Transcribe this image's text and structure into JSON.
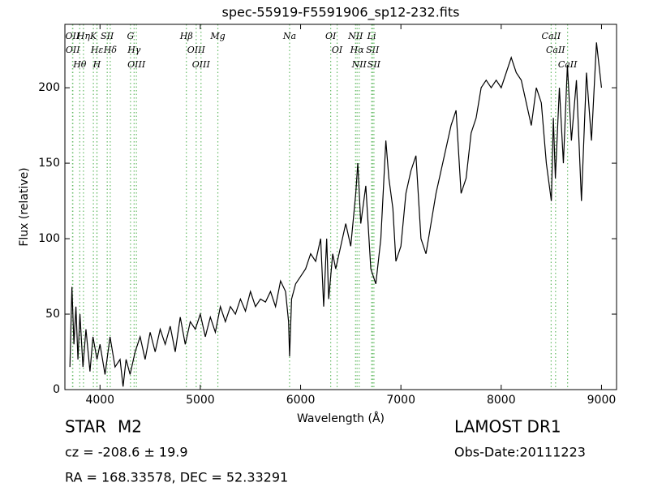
{
  "chart_data": {
    "type": "line",
    "title": "spec-55919-F5591906_sp12-232.fits",
    "xlabel": "Wavelength (Å)",
    "ylabel": "Flux (relative)",
    "xlim": [
      3650,
      9150
    ],
    "xticks": [
      4000,
      5000,
      6000,
      7000,
      8000,
      9000
    ],
    "ylim": [
      0,
      242
    ],
    "yticks": [
      0,
      50,
      100,
      150,
      200
    ],
    "color": "#000000",
    "line_color": "#66bb66",
    "x": [
      3700,
      3720,
      3740,
      3760,
      3780,
      3800,
      3830,
      3860,
      3900,
      3930,
      3970,
      4000,
      4050,
      4100,
      4150,
      4200,
      4230,
      4260,
      4300,
      4350,
      4400,
      4450,
      4500,
      4550,
      4600,
      4650,
      4700,
      4750,
      4800,
      4850,
      4900,
      4950,
      5000,
      5050,
      5100,
      5150,
      5200,
      5250,
      5300,
      5350,
      5400,
      5450,
      5500,
      5550,
      5600,
      5650,
      5700,
      5750,
      5800,
      5850,
      5880,
      5890,
      5910,
      5950,
      6000,
      6050,
      6100,
      6150,
      6200,
      6230,
      6260,
      6280,
      6320,
      6350,
      6400,
      6450,
      6500,
      6550,
      6570,
      6600,
      6650,
      6700,
      6750,
      6800,
      6850,
      6880,
      6920,
      6950,
      7000,
      7050,
      7100,
      7150,
      7200,
      7250,
      7300,
      7350,
      7400,
      7450,
      7500,
      7550,
      7600,
      7650,
      7700,
      7750,
      7800,
      7850,
      7900,
      7950,
      8000,
      8050,
      8100,
      8150,
      8200,
      8250,
      8300,
      8350,
      8400,
      8450,
      8500,
      8520,
      8540,
      8580,
      8620,
      8660,
      8700,
      8750,
      8800,
      8850,
      8900,
      8950,
      9000
    ],
    "values": [
      15,
      68,
      30,
      55,
      20,
      50,
      15,
      40,
      12,
      35,
      20,
      30,
      10,
      35,
      15,
      20,
      2,
      20,
      10,
      25,
      35,
      20,
      38,
      25,
      40,
      30,
      42,
      25,
      48,
      30,
      45,
      40,
      50,
      35,
      48,
      38,
      55,
      45,
      55,
      50,
      60,
      52,
      65,
      55,
      60,
      58,
      65,
      55,
      72,
      65,
      45,
      22,
      60,
      70,
      75,
      80,
      90,
      85,
      100,
      55,
      100,
      60,
      90,
      80,
      95,
      110,
      95,
      130,
      150,
      110,
      135,
      80,
      70,
      100,
      165,
      140,
      120,
      85,
      95,
      130,
      145,
      155,
      100,
      90,
      110,
      130,
      145,
      160,
      175,
      185,
      130,
      140,
      170,
      180,
      200,
      205,
      200,
      205,
      200,
      210,
      220,
      210,
      205,
      190,
      175,
      200,
      190,
      150,
      125,
      180,
      140,
      200,
      150,
      215,
      165,
      205,
      125,
      210,
      165,
      230,
      200
    ],
    "lines": [
      {
        "name": "OII",
        "wavelength": 3726
      },
      {
        "name": "OII",
        "wavelength": 3729
      },
      {
        "name": "Hθ",
        "wavelength": 3798
      },
      {
        "name": "Hη",
        "wavelength": 3835
      },
      {
        "name": "K",
        "wavelength": 3934
      },
      {
        "name": "Hε",
        "wavelength": 3970
      },
      {
        "name": "H",
        "wavelength": 3969
      },
      {
        "name": "SII",
        "wavelength": 4072
      },
      {
        "name": "Hδ",
        "wavelength": 4102
      },
      {
        "name": "G",
        "wavelength": 4304
      },
      {
        "name": "Hγ",
        "wavelength": 4340
      },
      {
        "name": "OIII",
        "wavelength": 4363
      },
      {
        "name": "Hβ",
        "wavelength": 4861
      },
      {
        "name": "OIII",
        "wavelength": 4959
      },
      {
        "name": "OIII",
        "wavelength": 5007
      },
      {
        "name": "Mg",
        "wavelength": 5175
      },
      {
        "name": "Na",
        "wavelength": 5890
      },
      {
        "name": "OI",
        "wavelength": 6300
      },
      {
        "name": "OI",
        "wavelength": 6364
      },
      {
        "name": "NII",
        "wavelength": 6548
      },
      {
        "name": "Hα",
        "wavelength": 6563
      },
      {
        "name": "NII",
        "wavelength": 6584
      },
      {
        "name": "Li",
        "wavelength": 6708
      },
      {
        "name": "SII",
        "wavelength": 6717
      },
      {
        "name": "SII",
        "wavelength": 6731
      },
      {
        "name": "CaII",
        "wavelength": 8498
      },
      {
        "name": "CaII",
        "wavelength": 8542
      },
      {
        "name": "CaII",
        "wavelength": 8662
      }
    ]
  },
  "info": {
    "class": "STAR",
    "subclass": "M2",
    "cz": "cz = -208.6 ± 19.9",
    "coords": "RA = 168.33578, DEC = 52.33291",
    "survey": "LAMOST DR1",
    "obs_date": "Obs-Date:20111223"
  }
}
